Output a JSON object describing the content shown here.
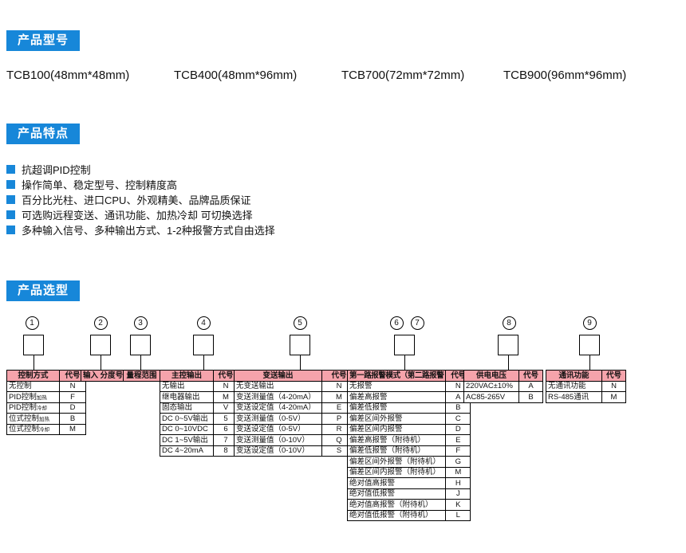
{
  "colors": {
    "accent_blue": "#1787d9",
    "table_header_pink": "#f5a3ab"
  },
  "sections": {
    "model": {
      "badge": "产品型号",
      "models": [
        "TCB100(48mm*48mm)",
        "TCB400(48mm*96mm)",
        "TCB700(72mm*72mm)",
        "TCB900(96mm*96mm)"
      ]
    },
    "features": {
      "badge": "产品特点",
      "items": [
        "抗超调PID控制",
        "操作简单、稳定型号、控制精度高",
        "百分比光柱、进口CPU、外观精美、品牌品质保证",
        "可选购远程变送、通讯功能、加热冷却 可切换选择",
        "多种输入信号、多种输出方式、1-2种报警方式自由选择"
      ]
    },
    "selection": {
      "badge": "产品选型",
      "circles": [
        "1",
        "2",
        "3",
        "4",
        "5",
        "6",
        "7",
        "8",
        "9"
      ],
      "tables": [
        {
          "id": "control",
          "header": [
            "控制方式",
            "代号"
          ],
          "rows": [
            {
              "t": "无控制",
              "c": "N"
            },
            {
              "t": "PID控制",
              "sub": "加热",
              "c": "F"
            },
            {
              "t": "PID控制",
              "sub": "冷却",
              "c": "D"
            },
            {
              "t": "位式控制",
              "sub": "加热",
              "c": "B"
            },
            {
              "t": "位式控制",
              "sub": "冷却",
              "c": "M"
            }
          ]
        },
        {
          "id": "input-division",
          "header": [
            "输入 分度号"
          ],
          "rows": []
        },
        {
          "id": "range",
          "header": [
            "量程范围"
          ],
          "rows": []
        },
        {
          "id": "main-output",
          "header": [
            "主控输出",
            "代号"
          ],
          "rows": [
            {
              "t": "无输出",
              "c": "N"
            },
            {
              "t": "继电器输出",
              "c": "M"
            },
            {
              "t": "固态输出",
              "c": "V"
            },
            {
              "t": "DC 0~5V输出",
              "c": "5"
            },
            {
              "t": "DC 0~10VDC",
              "c": "6"
            },
            {
              "t": "DC 1~5V输出",
              "c": "7"
            },
            {
              "t": "DC 4~20mA",
              "c": "8"
            }
          ]
        },
        {
          "id": "transmit-output",
          "header": [
            "变送输出",
            "代号"
          ],
          "rows": [
            {
              "t": "无变送输出",
              "c": "N"
            },
            {
              "t": "变送测量值（4-20mA）",
              "c": "M"
            },
            {
              "t": "变送设定值（4-20mA）",
              "c": "E"
            },
            {
              "t": "变送测量值（0-5V）",
              "c": "P"
            },
            {
              "t": "变送设定值（0-5V）",
              "c": "R"
            },
            {
              "t": "变送测量值（0-10V）",
              "c": "Q"
            },
            {
              "t": "变送设定值（0-10V）",
              "c": "S"
            }
          ]
        },
        {
          "id": "alarm-mode",
          "header": [
            "第一路报警模式（第二路报警",
            "代号"
          ],
          "rows": [
            {
              "t": "无报警",
              "c": "N"
            },
            {
              "t": "偏差高报警",
              "c": "A"
            },
            {
              "t": "偏差低报警",
              "c": "B"
            },
            {
              "t": "偏差区间外报警",
              "c": "C"
            },
            {
              "t": "偏差区间内报警",
              "c": "D"
            },
            {
              "t": "偏差高报警（附待机）",
              "c": "E"
            },
            {
              "t": "偏差低报警（附待机）",
              "c": "F"
            },
            {
              "t": "偏差区间外报警（附待机）",
              "c": "G"
            },
            {
              "t": "偏差区间内报警（附待机）",
              "c": "M"
            },
            {
              "t": "绝对值高报警",
              "c": "H"
            },
            {
              "t": "绝对值低报警",
              "c": "J"
            },
            {
              "t": "绝对值高报警（附待机）",
              "c": "K"
            },
            {
              "t": "绝对值低报警（附待机）",
              "c": "L"
            }
          ]
        },
        {
          "id": "power-supply",
          "header": [
            "供电电压",
            "代号"
          ],
          "rows": [
            {
              "t": "220VAC±10%",
              "c": "A"
            },
            {
              "t": "AC85-265V",
              "c": "B"
            }
          ]
        },
        {
          "id": "communication",
          "header": [
            "通讯功能",
            "代号"
          ],
          "rows": [
            {
              "t": "无通讯功能",
              "c": "N"
            },
            {
              "t": "RS-485通讯",
              "c": "M"
            }
          ]
        }
      ]
    }
  }
}
